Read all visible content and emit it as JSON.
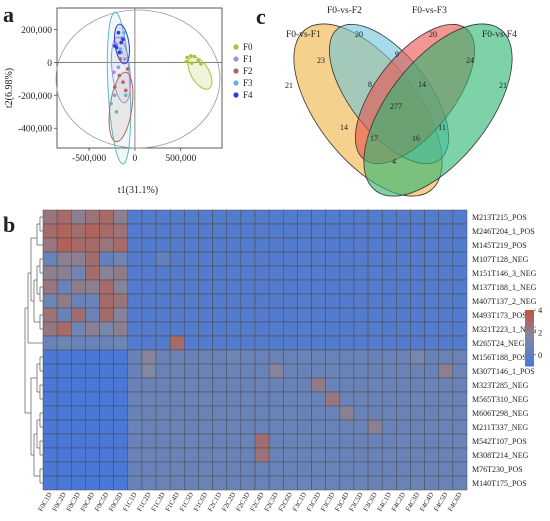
{
  "panel_labels": {
    "a": "a",
    "b": "b",
    "c": "c"
  },
  "colors": {
    "F0": "#a6c33a",
    "F1": "#a58fd6",
    "F2": "#b0655e",
    "F3": "#5fb8c9",
    "F4": "#2b3fd2",
    "ellipse_outer": "#9a9a9a",
    "venn_1": "#f1b347",
    "venn_2": "#6fc5d9",
    "venn_3": "#e8564f",
    "venn_4": "#2fb673",
    "heat_low": "#4b78d6",
    "heat_mid": "#7d8aa6",
    "heat_high": "#c2553f"
  },
  "chart_data": [
    {
      "type": "scatter",
      "xlabel": "t1(31.1%)",
      "ylabel": "t2(6.98%)",
      "xticks": [
        "-500,000",
        "0",
        "500,000"
      ],
      "yticks": [
        "200,000",
        "0",
        "-200,000",
        "-400,000"
      ],
      "xlim": [
        -850000,
        950000
      ],
      "ylim": [
        -520000,
        330000
      ],
      "legend": [
        "F0",
        "F1",
        "F2",
        "F3",
        "F4"
      ],
      "legend_position": "right",
      "series": [
        {
          "name": "F0",
          "points": [
            [
              570000,
              30000
            ],
            [
              610000,
              40000
            ],
            [
              650000,
              35000
            ],
            [
              690000,
              10000
            ],
            [
              720000,
              -10000
            ],
            [
              620000,
              -5000
            ],
            [
              560000,
              5000
            ]
          ]
        },
        {
          "name": "F1",
          "points": [
            [
              -200000,
              110000
            ],
            [
              -150000,
              60000
            ],
            [
              -180000,
              -30000
            ],
            [
              -230000,
              -60000
            ],
            [
              -110000,
              20000
            ],
            [
              -140000,
              150000
            ]
          ]
        },
        {
          "name": "F2",
          "points": [
            [
              -130000,
              -120000
            ],
            [
              -170000,
              -80000
            ],
            [
              -100000,
              -170000
            ],
            [
              -220000,
              -150000
            ],
            [
              -80000,
              -40000
            ],
            [
              -160000,
              20000
            ]
          ]
        },
        {
          "name": "F3",
          "points": [
            [
              -260000,
              -250000
            ],
            [
              -200000,
              -300000
            ],
            [
              -160000,
              80000
            ],
            [
              -120000,
              180000
            ],
            [
              -100000,
              -200000
            ],
            [
              -220000,
              -200000
            ]
          ]
        },
        {
          "name": "F4",
          "points": [
            [
              -180000,
              180000
            ],
            [
              -150000,
              120000
            ],
            [
              -200000,
              90000
            ],
            [
              -170000,
              60000
            ],
            [
              -130000,
              140000
            ],
            [
              -220000,
              100000
            ]
          ]
        }
      ]
    },
    {
      "type": "venn",
      "sets": [
        "F0-vs-F1",
        "F0-vs-F2",
        "F0-vs-F3",
        "F0-vs-F4"
      ],
      "regions": {
        "A": 21,
        "B": 20,
        "C": 20,
        "D": 21,
        "AB": 23,
        "AC": 14,
        "AD": 4,
        "BC": 9,
        "BD": 11,
        "CD": 24,
        "ABC": 8,
        "ABD": 16,
        "ACD": 17,
        "BCD": 14,
        "ABCD": 277
      }
    },
    {
      "type": "heatmap",
      "legend_ticks": [
        "4",
        "2",
        "0"
      ],
      "colorscale_range": [
        -1,
        4
      ],
      "rows": [
        "M213T215_POS",
        "M246T204_1_POS",
        "M145T219_POS",
        "M107T128_NEG",
        "M151T146_3_NEG",
        "M137T188_1_NEG",
        "M407T137_2_NEG",
        "M493T173_POS",
        "M321T223_1_NEG",
        "M265T24_NEG",
        "M156T188_POS",
        "M307T146_1_POS",
        "M323T285_NEG",
        "M565T310_NEG",
        "M606T298_NEG",
        "M211T337_NEG",
        "M542T107_POS",
        "M308T214_NEG",
        "M76T230_POS",
        "M140T175_POS"
      ],
      "columns": [
        "F0C1D",
        "F0C2D",
        "F0C3D",
        "F0C4D",
        "F0C5D",
        "F0C6D",
        "F1C1D",
        "F1C2D",
        "F1C3D",
        "F1C4D",
        "F1C5D",
        "F1C6D",
        "F2C1D",
        "F2C2D",
        "F2C3D",
        "F2C4D",
        "F2C5D",
        "F2C6D",
        "F3C1D",
        "F3C2D",
        "F3C3D",
        "F3C4D",
        "F3C5D",
        "F3C6D",
        "F4C1D",
        "F4C2D",
        "F4C3D",
        "F4C4D",
        "F4C5D",
        "F4C6D"
      ],
      "values": [
        [
          2.5,
          3.0,
          2.0,
          2.6,
          3.0,
          2.0,
          -0.6,
          -0.6,
          -0.5,
          -0.6,
          -0.5,
          -0.6,
          -0.6,
          -0.5,
          -0.6,
          -0.6,
          -0.5,
          -0.6,
          -0.6,
          -0.5,
          -0.6,
          -0.6,
          -0.5,
          -0.6,
          -0.6,
          -0.5,
          -0.6,
          -0.6,
          -0.5,
          -0.6
        ],
        [
          3.0,
          3.3,
          2.8,
          3.3,
          3.0,
          2.6,
          -0.6,
          -0.5,
          -0.6,
          -0.5,
          -0.6,
          -0.6,
          -0.5,
          -0.6,
          -0.6,
          -0.5,
          -0.6,
          -0.6,
          -0.5,
          -0.6,
          -0.6,
          -0.5,
          -0.6,
          -0.6,
          -0.5,
          -0.6,
          -0.6,
          -0.5,
          -0.6,
          -0.6
        ],
        [
          2.5,
          3.4,
          3.0,
          3.0,
          2.5,
          3.0,
          -0.5,
          -0.6,
          -0.6,
          -0.5,
          -0.6,
          -0.6,
          -0.6,
          -0.5,
          -0.6,
          -0.6,
          -0.5,
          -0.6,
          -0.6,
          -0.5,
          -0.6,
          -0.6,
          -0.5,
          -0.6,
          -0.6,
          -0.5,
          -0.6,
          -0.6,
          -0.5,
          -0.6
        ],
        [
          0.5,
          2.0,
          2.0,
          2.8,
          0.3,
          0.8,
          -0.5,
          -0.6,
          0.2,
          -0.5,
          -0.6,
          -0.6,
          -0.5,
          -0.6,
          -0.6,
          -0.5,
          -0.6,
          -0.6,
          -0.5,
          -0.6,
          -0.6,
          -0.5,
          -0.6,
          -0.6,
          -0.5,
          -0.6,
          -0.6,
          -0.5,
          -0.6,
          -0.6
        ],
        [
          2.0,
          2.0,
          0.8,
          3.0,
          1.8,
          2.2,
          -0.6,
          -0.5,
          -0.6,
          -0.6,
          -0.5,
          -0.6,
          -0.6,
          -0.5,
          -0.6,
          -0.6,
          -0.5,
          -0.6,
          -0.6,
          -0.5,
          -0.6,
          -0.6,
          -0.5,
          -0.6,
          -0.6,
          -0.5,
          -0.6,
          -0.6,
          -0.5,
          -0.6
        ],
        [
          2.5,
          0.5,
          2.2,
          2.0,
          3.0,
          1.8,
          -0.5,
          -0.6,
          -0.6,
          -0.5,
          -0.6,
          -0.6,
          -0.5,
          -0.6,
          -0.6,
          -0.5,
          -0.6,
          -0.6,
          -0.5,
          -0.6,
          -0.6,
          -0.5,
          -0.6,
          -0.6,
          -0.5,
          -0.6,
          -0.6,
          -0.5,
          -0.6,
          -0.6
        ],
        [
          0.8,
          2.2,
          0.5,
          0.6,
          3.0,
          2.6,
          -0.6,
          -0.5,
          -0.6,
          -0.6,
          -0.5,
          -0.6,
          -0.6,
          -0.5,
          -0.6,
          -0.6,
          -0.5,
          -0.6,
          -0.6,
          -0.5,
          -0.6,
          -0.6,
          -0.5,
          -0.6,
          -0.6,
          -0.5,
          -0.6,
          -0.6,
          -0.5,
          -0.6
        ],
        [
          2.6,
          0.5,
          2.8,
          0.5,
          3.0,
          1.8,
          -0.5,
          -0.6,
          -0.6,
          -0.5,
          -0.6,
          -0.6,
          -0.5,
          -0.6,
          -0.6,
          -0.5,
          -0.6,
          -0.6,
          -0.5,
          -0.6,
          -0.6,
          -0.5,
          -0.6,
          -0.6,
          -0.5,
          -0.6,
          -0.6,
          -0.5,
          -0.6,
          -0.6
        ],
        [
          2.4,
          3.0,
          0.8,
          2.0,
          1.2,
          2.0,
          -0.6,
          -0.5,
          -0.6,
          -0.6,
          -0.5,
          -0.6,
          -0.6,
          -0.5,
          -0.6,
          -0.6,
          -0.5,
          -0.6,
          -0.6,
          -0.5,
          -0.6,
          -0.6,
          -0.5,
          -0.6,
          -0.6,
          -0.5,
          -0.6,
          -0.6,
          -0.5,
          -0.6
        ],
        [
          0.5,
          0.8,
          0.5,
          0.6,
          0.5,
          0.8,
          -0.5,
          -0.6,
          -0.6,
          3.0,
          -0.6,
          -0.6,
          -0.5,
          -0.6,
          -0.6,
          -0.5,
          -0.6,
          -0.6,
          -0.5,
          -0.6,
          -0.6,
          -0.5,
          -0.6,
          -0.6,
          -0.5,
          -0.6,
          -0.6,
          -0.5,
          -0.6,
          -0.6
        ],
        [
          -1.0,
          -1.0,
          -1.0,
          -1.0,
          -1.0,
          -1.0,
          0.5,
          1.8,
          0.5,
          0.5,
          0.5,
          0.6,
          0.5,
          0.8,
          0.6,
          0.5,
          0.5,
          0.5,
          0.6,
          0.5,
          0.5,
          0.5,
          0.6,
          0.5,
          0.5,
          0.6,
          1.2,
          0.5,
          0.5,
          0.5
        ],
        [
          -1.0,
          -1.0,
          -1.0,
          -1.0,
          -1.0,
          -1.0,
          0.5,
          1.6,
          0.5,
          0.6,
          0.5,
          0.5,
          0.5,
          0.6,
          0.5,
          0.5,
          1.8,
          0.6,
          0.5,
          0.5,
          0.6,
          0.5,
          0.5,
          0.5,
          0.6,
          0.5,
          0.5,
          0.5,
          2.0,
          0.5
        ],
        [
          -1.0,
          -1.0,
          -1.0,
          -1.0,
          -1.0,
          -1.0,
          0.5,
          0.5,
          0.5,
          0.5,
          0.6,
          0.5,
          0.5,
          0.5,
          0.5,
          0.6,
          0.5,
          0.5,
          0.5,
          2.2,
          0.5,
          0.5,
          0.5,
          0.6,
          0.5,
          0.5,
          0.5,
          0.6,
          0.5,
          0.5
        ],
        [
          -1.0,
          -1.0,
          -1.0,
          -1.0,
          -1.0,
          -1.0,
          0.5,
          0.6,
          0.5,
          0.5,
          0.5,
          0.6,
          0.5,
          0.5,
          0.6,
          0.5,
          0.5,
          0.5,
          0.6,
          0.5,
          2.4,
          0.5,
          0.6,
          0.5,
          0.5,
          0.5,
          0.6,
          0.5,
          0.5,
          0.5
        ],
        [
          -1.0,
          -1.0,
          -1.0,
          -1.0,
          -1.0,
          -1.0,
          0.5,
          0.5,
          0.6,
          0.5,
          0.5,
          0.5,
          0.6,
          0.5,
          0.5,
          0.5,
          0.6,
          0.5,
          0.5,
          0.5,
          0.5,
          2.0,
          0.5,
          0.5,
          0.6,
          0.5,
          0.5,
          0.5,
          0.6,
          0.5
        ],
        [
          -1.0,
          -1.0,
          -1.0,
          -1.0,
          -1.0,
          -1.0,
          0.6,
          0.5,
          0.5,
          0.6,
          0.5,
          0.5,
          0.5,
          0.6,
          0.5,
          0.5,
          0.5,
          0.6,
          0.5,
          0.5,
          0.5,
          0.5,
          0.6,
          2.0,
          0.5,
          0.5,
          0.5,
          0.6,
          0.5,
          0.5
        ],
        [
          -1.0,
          -1.0,
          -1.0,
          -1.0,
          -1.0,
          -1.0,
          0.5,
          0.5,
          0.5,
          0.5,
          0.6,
          0.5,
          0.5,
          0.5,
          0.6,
          2.8,
          0.5,
          0.5,
          0.6,
          0.5,
          0.5,
          0.5,
          0.5,
          0.5,
          0.5,
          0.6,
          0.5,
          0.5,
          0.5,
          0.6
        ],
        [
          -1.0,
          -1.0,
          -1.0,
          -1.0,
          -1.0,
          -1.0,
          0.5,
          0.6,
          0.5,
          0.5,
          0.5,
          0.5,
          0.6,
          0.5,
          0.5,
          2.6,
          0.5,
          0.5,
          0.5,
          0.6,
          0.5,
          0.5,
          0.5,
          0.5,
          0.6,
          0.5,
          0.5,
          0.5,
          0.5,
          0.5
        ],
        [
          -1.0,
          -1.0,
          -1.0,
          -1.0,
          -1.0,
          -1.0,
          0.5,
          0.5,
          0.5,
          0.6,
          0.5,
          0.5,
          0.5,
          0.5,
          0.5,
          0.5,
          0.6,
          0.5,
          0.5,
          0.5,
          0.6,
          0.5,
          0.5,
          0.5,
          0.5,
          0.5,
          0.5,
          0.6,
          0.5,
          0.5
        ],
        [
          -1.0,
          -1.0,
          -1.0,
          -1.0,
          -1.0,
          -1.0,
          0.5,
          0.5,
          0.6,
          0.5,
          0.5,
          0.6,
          0.5,
          0.5,
          0.5,
          0.5,
          0.5,
          0.5,
          0.6,
          0.5,
          0.5,
          0.5,
          0.6,
          0.5,
          0.5,
          0.5,
          0.6,
          0.5,
          0.5,
          0.5
        ]
      ]
    }
  ]
}
